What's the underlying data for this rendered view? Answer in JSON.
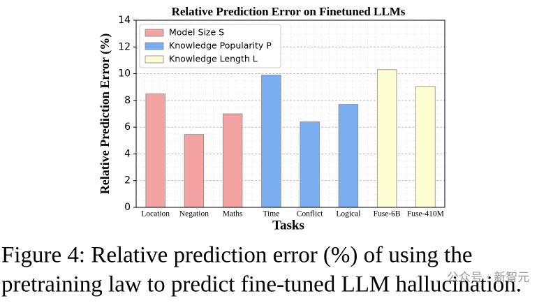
{
  "chart_data": {
    "type": "bar",
    "title": "Relative Prediction Error on Finetuned LLMs",
    "x_label": "Tasks",
    "y_label": "Relative Prediction Error (%)",
    "categories": [
      "Location",
      "Negation",
      "Maths",
      "Time",
      "Conflict",
      "Logical",
      "Fuse-6B",
      "Fuse-410M"
    ],
    "values": [
      8.5,
      5.45,
      7.0,
      9.9,
      6.4,
      7.7,
      10.3,
      9.05
    ],
    "colors": [
      "#f4a3a3",
      "#f4a3a3",
      "#f4a3a3",
      "#7aaef0",
      "#7aaef0",
      "#7aaef0",
      "#fdfdd2",
      "#fdfdd2"
    ],
    "legend": [
      {
        "name": "Model Size S",
        "color": "#f4a3a3"
      },
      {
        "name": "Knowledge Popularity P",
        "color": "#7aaef0"
      },
      {
        "name": "Knowledge Length L",
        "color": "#fdfdd2"
      }
    ],
    "legend_position": "upper left",
    "ylim": [
      0,
      14
    ],
    "yticks": [
      0,
      2,
      4,
      6,
      8,
      10,
      12,
      14
    ],
    "grid": true
  },
  "caption": [
    "Figure 4:  Relative prediction error (%) of using the",
    "pretraining law to predict fine-tuned LLM hallucination."
  ],
  "watermark": "公众号 · 新智元"
}
